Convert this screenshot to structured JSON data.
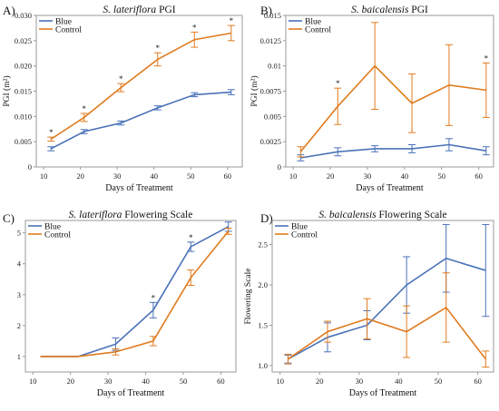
{
  "colors": {
    "blue": "#4a72b8",
    "control": "#e07b20",
    "axis": "#9a9a9a"
  },
  "chart_data": [
    {
      "type": "line",
      "panel_label": "A)",
      "title": {
        "species": "S. lateriflora",
        "suffix": " PGI"
      },
      "xlabel": "Days of Treatment",
      "ylabel": "PGI (m²)",
      "xlim": [
        8,
        64
      ],
      "ylim": [
        0,
        0.03
      ],
      "x_ticks": [
        10,
        20,
        30,
        40,
        50,
        60
      ],
      "y_ticks": [
        0,
        0.005,
        0.01,
        0.015,
        0.02,
        0.025,
        0.03
      ],
      "y_tick_labels": [
        "0",
        "0.005",
        "0.010",
        "0.015",
        "0.020",
        "0.025",
        "0.030"
      ],
      "x": [
        12,
        21,
        31,
        41,
        51,
        61
      ],
      "series": [
        {
          "name": "Blue",
          "color": "blue",
          "values": [
            0.0036,
            0.007,
            0.0087,
            0.0117,
            0.0143,
            0.0148
          ],
          "errors": [
            0.0004,
            0.0004,
            0.0004,
            0.0004,
            0.0004,
            0.0005
          ]
        },
        {
          "name": "Control",
          "color": "control",
          "values": [
            0.0055,
            0.0098,
            0.0157,
            0.0213,
            0.0252,
            0.0265
          ],
          "errors": [
            0.0004,
            0.0008,
            0.0008,
            0.0013,
            0.0015,
            0.0015
          ]
        }
      ],
      "significance_marker": "*",
      "significant_x": [
        12,
        21,
        31,
        41,
        51,
        61
      ],
      "legend": [
        "Blue",
        "Control"
      ]
    },
    {
      "type": "line",
      "panel_label": "B)",
      "title": {
        "species": "S. baicalensis",
        "suffix": " PGI"
      },
      "xlabel": "Days of Treatment",
      "ylabel": "PGI (m²)",
      "xlim": [
        8,
        64
      ],
      "ylim": [
        0,
        0.015
      ],
      "x_ticks": [
        10,
        20,
        30,
        40,
        50,
        60
      ],
      "y_ticks": [
        0,
        0.0025,
        0.005,
        0.0075,
        0.01,
        0.0125,
        0.015
      ],
      "y_tick_labels": [
        "0",
        "0.0025",
        "0.005",
        "0.0075",
        "0.01",
        "0.0125",
        "0.015"
      ],
      "x": [
        12,
        22,
        32,
        42,
        52,
        62
      ],
      "series": [
        {
          "name": "Blue",
          "color": "blue",
          "values": [
            0.0009,
            0.0015,
            0.0018,
            0.0018,
            0.0022,
            0.0016
          ],
          "errors": [
            0.0003,
            0.0004,
            0.0003,
            0.0004,
            0.0006,
            0.0004
          ]
        },
        {
          "name": "Control",
          "color": "control",
          "values": [
            0.0015,
            0.006,
            0.01,
            0.0063,
            0.0081,
            0.0076
          ],
          "errors": [
            0.0005,
            0.0018,
            0.0043,
            0.0029,
            0.004,
            0.0027
          ]
        }
      ],
      "significance_marker": "*",
      "significant_x": [
        22,
        62
      ],
      "legend": [
        "Blue",
        "Control"
      ]
    },
    {
      "type": "line",
      "panel_label": "C)",
      "title": {
        "species": "S. lateriflora",
        "suffix": " Flowering Scale"
      },
      "xlabel": "Days of Treatment",
      "ylabel": "Flowering Scale",
      "xlim": [
        8,
        64
      ],
      "ylim": [
        0.5,
        5.4
      ],
      "x_ticks": [
        10,
        20,
        30,
        40,
        50,
        60
      ],
      "y_ticks": [
        1,
        2,
        3,
        4,
        5
      ],
      "y_tick_labels": [
        "1",
        "2",
        "3",
        "4",
        "5"
      ],
      "x": [
        12,
        22,
        32,
        42,
        52,
        62
      ],
      "series": [
        {
          "name": "Blue",
          "color": "blue",
          "values": [
            1.0,
            1.0,
            1.4,
            2.5,
            4.55,
            5.2
          ],
          "errors": [
            0,
            0,
            0.2,
            0.25,
            0.15,
            0.15
          ]
        },
        {
          "name": "Control",
          "color": "control",
          "values": [
            1.0,
            1.0,
            1.15,
            1.5,
            3.55,
            5.05
          ],
          "errors": [
            0,
            0,
            0.1,
            0.15,
            0.25,
            0.1
          ]
        }
      ],
      "significance_marker": "*",
      "significant_x": [
        42,
        52
      ],
      "legend": [
        "Blue",
        "Control"
      ]
    },
    {
      "type": "line",
      "panel_label": "D)",
      "title": {
        "species": "S. baicalensis",
        "suffix": " Flowering Scale"
      },
      "xlabel": "Days of Treatment",
      "ylabel": "Flowering Scale",
      "xlim": [
        8,
        64
      ],
      "ylim": [
        0.92,
        2.8
      ],
      "x_ticks": [
        10,
        20,
        30,
        40,
        50,
        60
      ],
      "y_ticks": [
        1.0,
        1.5,
        2.0,
        2.5
      ],
      "y_tick_labels": [
        "1.0",
        "1.5",
        "2.0",
        "2.5"
      ],
      "x": [
        12,
        22,
        32,
        42,
        52,
        62
      ],
      "series": [
        {
          "name": "Blue",
          "color": "blue",
          "values": [
            1.08,
            1.35,
            1.5,
            2.0,
            2.33,
            2.18
          ],
          "errors": [
            0.05,
            0.18,
            0.18,
            0.35,
            0.42,
            0.57
          ]
        },
        {
          "name": "Control",
          "color": "control",
          "values": [
            1.08,
            1.42,
            1.58,
            1.42,
            1.72,
            1.08
          ],
          "errors": [
            0.06,
            0.13,
            0.25,
            0.32,
            0.43,
            0.1
          ]
        }
      ],
      "significance_marker": "",
      "significant_x": [],
      "legend": [
        "Blue",
        "Control"
      ]
    }
  ]
}
